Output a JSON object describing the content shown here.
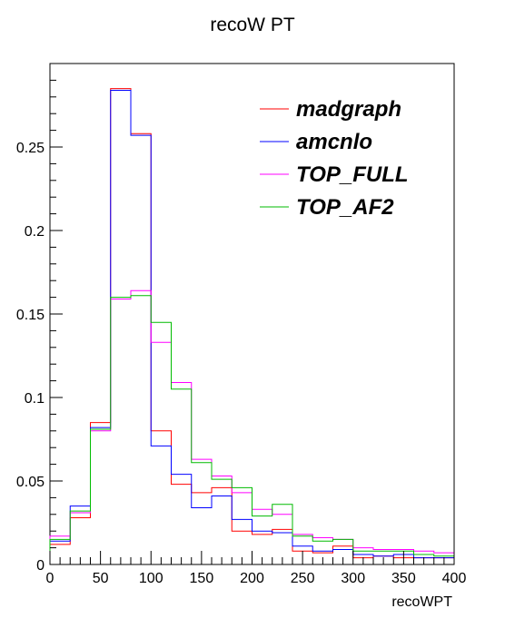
{
  "chart_data": {
    "type": "line",
    "title": "recoW PT",
    "xlabel": "recoWPT",
    "ylabel": "",
    "xlim": [
      0,
      400
    ],
    "ylim": [
      0,
      0.3
    ],
    "xticks": [
      0,
      50,
      100,
      150,
      200,
      250,
      300,
      350,
      400
    ],
    "xtick_labels": [
      "0",
      "50",
      "100",
      "150",
      "200",
      "250",
      "300",
      "350",
      "400"
    ],
    "yticks": [
      0,
      0.05,
      0.1,
      0.15,
      0.2,
      0.25
    ],
    "ytick_labels": [
      "0",
      "0.05",
      "0.1",
      "0.15",
      "0.2",
      "0.25"
    ],
    "grid": false,
    "legend_position": "top-right",
    "bin_edges": [
      0,
      20,
      40,
      60,
      80,
      100,
      120,
      140,
      160,
      180,
      200,
      220,
      240,
      260,
      280,
      300,
      320,
      340,
      360,
      380,
      400
    ],
    "series": [
      {
        "name": "madgraph",
        "color": "#ff0000",
        "values": [
          0.012,
          0.028,
          0.085,
          0.285,
          0.258,
          0.08,
          0.048,
          0.043,
          0.046,
          0.02,
          0.018,
          0.021,
          0.008,
          0.007,
          0.011,
          0.004,
          0.005,
          0.004,
          0.004,
          0.004
        ]
      },
      {
        "name": "amcnlo",
        "color": "#0000ff",
        "values": [
          0.014,
          0.035,
          0.082,
          0.284,
          0.257,
          0.071,
          0.054,
          0.034,
          0.041,
          0.027,
          0.02,
          0.019,
          0.011,
          0.008,
          0.009,
          0.006,
          0.005,
          0.006,
          0.004,
          0.004
        ]
      },
      {
        "name": "TOP_FULL",
        "color": "#ff00ff",
        "values": [
          0.017,
          0.031,
          0.08,
          0.159,
          0.164,
          0.133,
          0.109,
          0.063,
          0.053,
          0.043,
          0.033,
          0.03,
          0.018,
          0.016,
          0.015,
          0.01,
          0.009,
          0.009,
          0.008,
          0.007
        ]
      },
      {
        "name": "TOP_AF2",
        "color": "#00bb00",
        "values": [
          0.015,
          0.032,
          0.081,
          0.16,
          0.161,
          0.145,
          0.105,
          0.061,
          0.051,
          0.046,
          0.029,
          0.036,
          0.017,
          0.014,
          0.015,
          0.008,
          0.008,
          0.008,
          0.006,
          0.005
        ]
      }
    ]
  }
}
